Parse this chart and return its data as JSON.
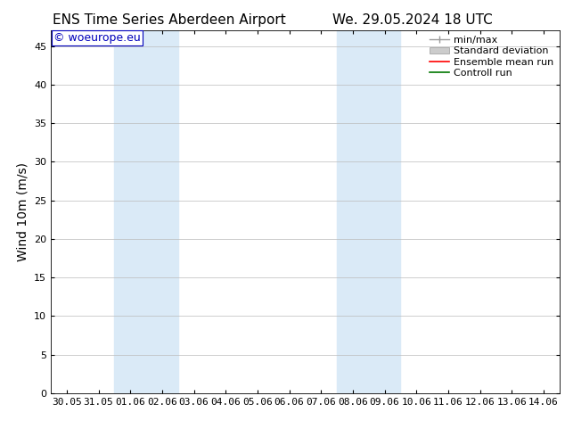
{
  "title_left": "ENS Time Series Aberdeen Airport",
  "title_right": "We. 29.05.2024 18 UTC",
  "ylabel": "Wind 10m (m/s)",
  "watermark": "© woeurope.eu",
  "watermark_color": "#0000bb",
  "background_color": "#ffffff",
  "plot_bg_color": "#ffffff",
  "shaded_color": "#daeaf7",
  "x_tick_labels": [
    "30.05",
    "31.05",
    "01.06",
    "02.06",
    "03.06",
    "04.06",
    "05.06",
    "06.06",
    "07.06",
    "08.06",
    "09.06",
    "10.06",
    "11.06",
    "12.06",
    "13.06",
    "14.06"
  ],
  "x_tick_values": [
    0,
    1,
    2,
    3,
    4,
    5,
    6,
    7,
    8,
    9,
    10,
    11,
    12,
    13,
    14,
    15
  ],
  "xlim": [
    -0.5,
    15.5
  ],
  "ylim": [
    0,
    47
  ],
  "yticks": [
    0,
    5,
    10,
    15,
    20,
    25,
    30,
    35,
    40,
    45
  ],
  "title_fontsize": 11,
  "tick_fontsize": 8,
  "ylabel_fontsize": 10,
  "legend_fontsize": 8,
  "watermark_fontsize": 9,
  "grid_color": "#bbbbbb",
  "shaded_xranges": [
    [
      1.5,
      3.5
    ],
    [
      8.5,
      10.5
    ]
  ]
}
